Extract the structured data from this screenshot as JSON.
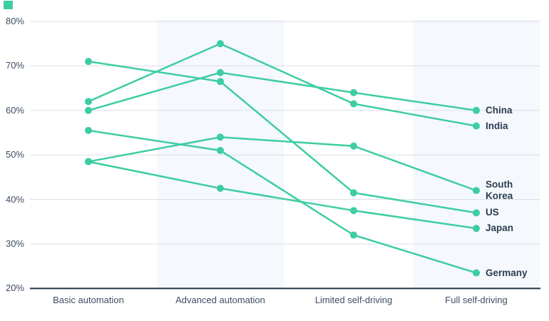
{
  "page": {
    "corner_marker_color": "#3ecda3"
  },
  "chart_data": {
    "type": "line",
    "title": "",
    "categories": [
      "Basic automation",
      "Advanced automation",
      "Limited self-driving",
      "Full self-driving"
    ],
    "series": [
      {
        "name": "China",
        "label_lines": [
          "China"
        ],
        "values": [
          60,
          68.5,
          64,
          60
        ]
      },
      {
        "name": "India",
        "label_lines": [
          "India"
        ],
        "values": [
          62,
          75,
          61.5,
          56.5
        ]
      },
      {
        "name": "South Korea",
        "label_lines": [
          "South",
          "Korea"
        ],
        "values": [
          48.5,
          54,
          52,
          42
        ]
      },
      {
        "name": "US",
        "label_lines": [
          "US"
        ],
        "values": [
          71,
          66.5,
          41.5,
          37
        ]
      },
      {
        "name": "Japan",
        "label_lines": [
          "Japan"
        ],
        "values": [
          48.5,
          42.5,
          37.5,
          33.5
        ]
      },
      {
        "name": "Germany",
        "label_lines": [
          "Germany"
        ],
        "values": [
          55.5,
          51,
          32,
          23.5
        ]
      }
    ],
    "y_axis": {
      "min": 20,
      "max": 80,
      "tick_step": 10,
      "tick_labels": [
        "80%",
        "70%",
        "60%",
        "50%",
        "40%",
        "30%",
        "20%"
      ]
    },
    "grid": true,
    "legend_position": "right-end-labels",
    "shaded_columns": [
      1,
      3
    ],
    "colors": {
      "line": "#3ecda3",
      "band": "#f5f8fd",
      "grid": "#dadfe5",
      "axis": "#22313f",
      "tick_text": "#3d4e63",
      "series_label_text": "#2d3e51"
    }
  }
}
